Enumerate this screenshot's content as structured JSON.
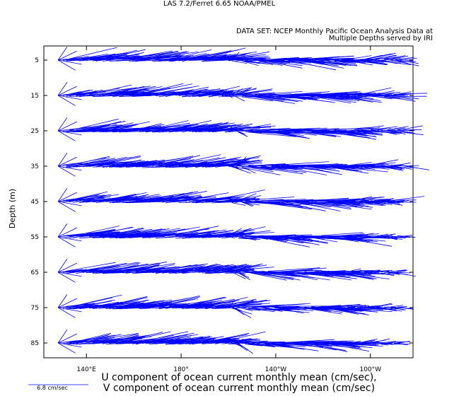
{
  "header": {
    "title": "LAS 7.2/Ferret 6.65      NOAA/PMEL",
    "dataset_line1": "DATA SET:  NCEP Monthly Pacific Ocean Analysis Data at",
    "dataset_line2": "Multiple Depths served by  IRI"
  },
  "chart_data": {
    "type": "vector",
    "xlabel": "U component of ocean current monthly mean (cm/sec),",
    "xlabel2": "V component of ocean current monthly mean (cm/sec)",
    "ylabel": "Depth (m)",
    "scale_label": "6.8 cm/sec",
    "x_ticks": [
      {
        "label": "140°E",
        "lon": 140
      },
      {
        "label": "180°",
        "lon": 180
      },
      {
        "label": "140°W",
        "lon": 220
      },
      {
        "label": "100°W",
        "lon": 260
      }
    ],
    "xlim": [
      122,
      278
    ],
    "depths": [
      5,
      15,
      25,
      35,
      45,
      55,
      65,
      75,
      85
    ],
    "depth_labels": [
      "5",
      "15",
      "25",
      "35",
      "45",
      "55",
      "65",
      "75",
      "85"
    ],
    "grid": false,
    "vector_color": "#0000ff"
  }
}
